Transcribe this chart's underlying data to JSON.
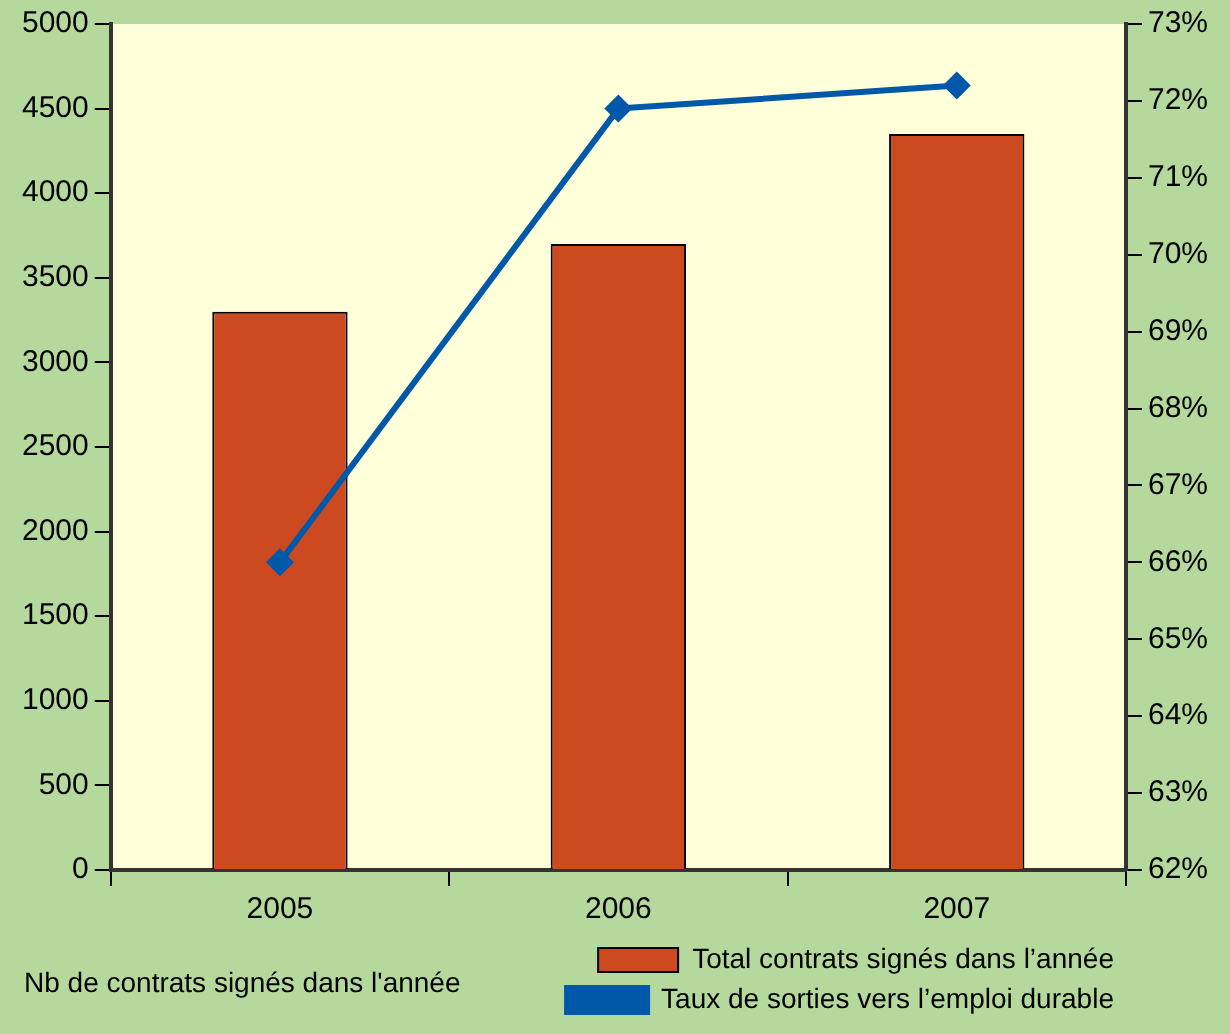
{
  "chart_data": {
    "type": "bar",
    "categories": [
      "2005",
      "2006",
      "2007"
    ],
    "series": [
      {
        "name": "Total contrats signés dans l’année",
        "color": "#cd4a20",
        "values": [
          3300,
          3700,
          4350
        ]
      },
      {
        "name": "Taux de sorties vers l’emploi durable",
        "type": "line",
        "axis": "y2",
        "color": "#0058a8",
        "marker": "diamond",
        "values": [
          66,
          71.9,
          72.2
        ]
      }
    ],
    "ylim": [
      0,
      5000
    ],
    "yticks": [
      0,
      500,
      1000,
      1500,
      2000,
      2500,
      3000,
      3500,
      4000,
      4500,
      5000
    ],
    "y2lim": [
      62,
      73
    ],
    "y2ticks": [
      {
        "value": 62,
        "label": "62%"
      },
      {
        "value": 63,
        "label": "63%"
      },
      {
        "value": 64,
        "label": "64%"
      },
      {
        "value": 65,
        "label": "65%"
      },
      {
        "value": 66,
        "label": "66%"
      },
      {
        "value": 67,
        "label": "67%"
      },
      {
        "value": 68,
        "label": "68%"
      },
      {
        "value": 69,
        "label": "69%"
      },
      {
        "value": 70,
        "label": "70%"
      },
      {
        "value": 71,
        "label": "71%"
      },
      {
        "value": 72,
        "label": "72%"
      },
      {
        "value": 73,
        "label": "73%"
      }
    ],
    "annotations": [
      "Nb de contrats signés dans l'année"
    ],
    "grid": false,
    "legend": "bottom right"
  }
}
